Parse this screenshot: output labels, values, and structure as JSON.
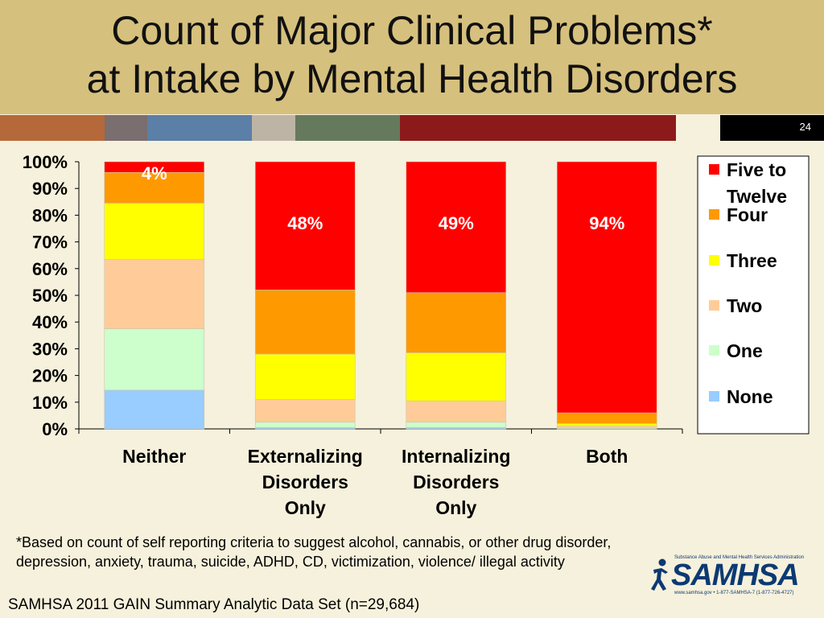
{
  "slide": {
    "title_line1": "Count of Major Clinical Problems*",
    "title_line2": "at Intake by Mental Health Disorders",
    "number": "24",
    "footnote": "*Based on count of self reporting criteria to suggest alcohol, cannabis, or other drug disorder, depression, anxiety, trauma, suicide, ADHD, CD, victimization, violence/ illegal activity",
    "source": "SAMHSA 2011 GAIN Summary Analytic Data Set (n=29,684)",
    "logo": {
      "word": "SAMHSA",
      "tagline_top": "Substance Abuse and Mental Health Services Administration",
      "tagline_bottom": "www.samhsa.gov • 1-877-SAMHSA-7 (1-877-726-4727)"
    },
    "stripe_colors": [
      "#b5693a",
      "#7a6e6e",
      "#5b7fa6",
      "#bdb4a6",
      "#657a5c",
      "#8c1a1a",
      "#f6f1dc",
      "#000000"
    ]
  },
  "chart_data": {
    "type": "bar",
    "stacked": true,
    "percent": true,
    "categories": [
      [
        "Neither"
      ],
      [
        "Externalizing",
        "Disorders",
        "Only"
      ],
      [
        "Internalizing",
        "Disorders",
        "Only"
      ],
      [
        "Both"
      ]
    ],
    "series": [
      {
        "name": "None",
        "color": "#99ccff",
        "values": [
          14.5,
          0.5,
          0.5,
          0
        ]
      },
      {
        "name": "One",
        "color": "#ccffcc",
        "values": [
          23,
          2,
          2,
          0.3
        ]
      },
      {
        "name": "Two",
        "color": "#ffcc99",
        "values": [
          26,
          8.5,
          8,
          0.7
        ]
      },
      {
        "name": "Three",
        "color": "#ffff00",
        "values": [
          21,
          17,
          18,
          1
        ]
      },
      {
        "name": "Four",
        "color": "#ff9900",
        "values": [
          11.5,
          24,
          22.5,
          4
        ]
      },
      {
        "name": "Five to Twelve",
        "color": "#ff0000",
        "values": [
          4,
          48,
          49,
          94
        ]
      }
    ],
    "data_labels": [
      {
        "category": 0,
        "series": "Five to Twelve",
        "text": "4%"
      },
      {
        "category": 1,
        "series": "Five to Twelve",
        "text": "48%"
      },
      {
        "category": 2,
        "series": "Five to Twelve",
        "text": "49%"
      },
      {
        "category": 3,
        "series": "Five to Twelve",
        "text": "94%"
      }
    ],
    "ylim": [
      0,
      100
    ],
    "yticks": [
      "0%",
      "10%",
      "20%",
      "30%",
      "40%",
      "50%",
      "60%",
      "70%",
      "80%",
      "90%",
      "100%"
    ],
    "legend_order": [
      "Five to Twelve",
      "Four",
      "Three",
      "Two",
      "One",
      "None"
    ],
    "legend_labels": {
      "Five to Twelve": [
        "Five to",
        "Twelve"
      ],
      "Four": [
        "Four"
      ],
      "Three": [
        "Three"
      ],
      "Two": [
        "Two"
      ],
      "One": [
        "One"
      ],
      "None": [
        "None"
      ]
    },
    "legend_position": "right",
    "grid": false
  }
}
